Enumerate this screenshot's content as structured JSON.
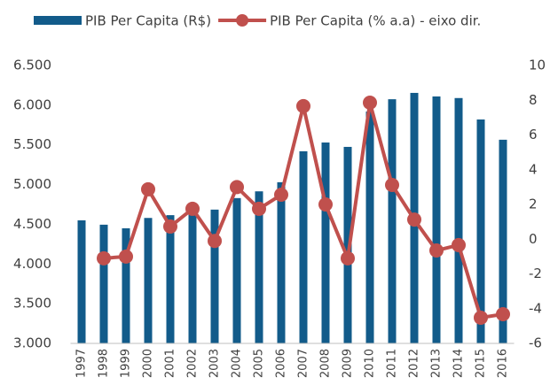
{
  "chart_data": {
    "type": "bar-line",
    "categories": [
      "1997",
      "1998",
      "1999",
      "2000",
      "2001",
      "2002",
      "2003",
      "2004",
      "2005",
      "2006",
      "2007",
      "2008",
      "2009",
      "2010",
      "2011",
      "2012",
      "2013",
      "2014",
      "2015",
      "2016"
    ],
    "series": [
      {
        "name": "PIB Per Capita (R$)",
        "type": "bar",
        "color": "#125b8a",
        "values": [
          4550,
          4495,
          4450,
          4580,
          4615,
          4650,
          4685,
          4830,
          4915,
          5030,
          5420,
          5530,
          5475,
          5920,
          6075,
          6155,
          6110,
          6090,
          5820,
          5565
        ]
      },
      {
        "name": "PIB Per Capita (% a.a) - eixo dir.",
        "type": "line",
        "axis": "y2",
        "color": "#c0504d",
        "values": [
          null,
          -1.1,
          -1.0,
          2.87,
          0.73,
          1.75,
          -0.1,
          3.0,
          1.75,
          2.56,
          7.66,
          2.0,
          -1.1,
          7.86,
          3.12,
          1.13,
          -0.65,
          -0.34,
          -4.52,
          -4.32
        ]
      }
    ],
    "ylim": [
      3000,
      6500
    ],
    "yticks": [
      {
        "value": 3000,
        "label": "3.000"
      },
      {
        "value": 3500,
        "label": "3.500"
      },
      {
        "value": 4000,
        "label": "4.000"
      },
      {
        "value": 4500,
        "label": "4.500"
      },
      {
        "value": 5000,
        "label": "5.000"
      },
      {
        "value": 5500,
        "label": "5.500"
      },
      {
        "value": 6000,
        "label": "6.000"
      },
      {
        "value": 6500,
        "label": "6.500"
      }
    ],
    "y2lim": [
      -6,
      10
    ],
    "y2ticks": [
      -6,
      -4,
      -2,
      0,
      2,
      4,
      6,
      8,
      10
    ],
    "grid": false,
    "legend": "top"
  }
}
